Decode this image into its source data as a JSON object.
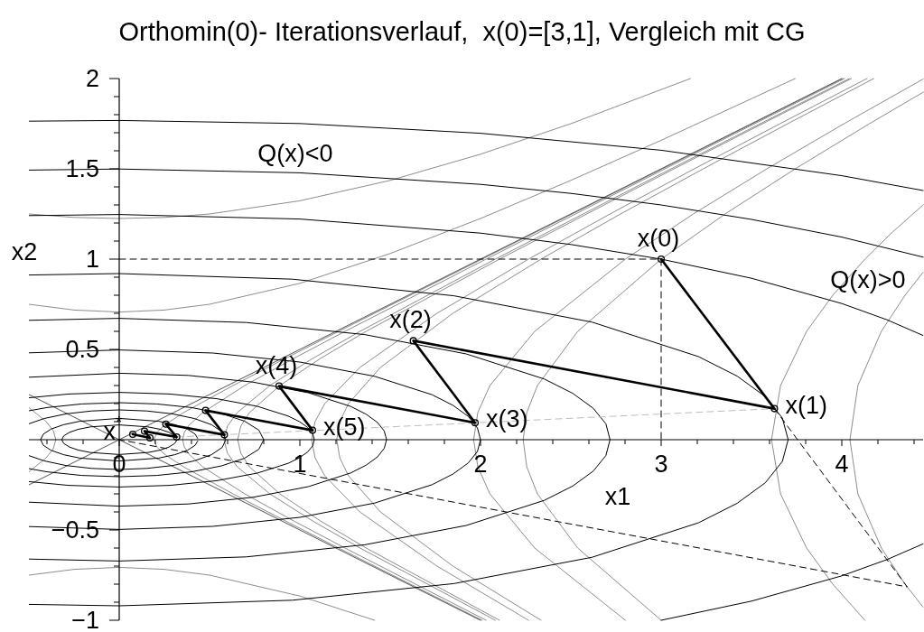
{
  "chart_data": {
    "type": "line",
    "title": "Orthomin(0)- Iterationsverlauf,  x(0)=[3,1], Vergleich mit CG",
    "xlabel": "x1",
    "ylabel": "x2",
    "xlim": [
      -0.5,
      4.45
    ],
    "ylim": [
      -1,
      2
    ],
    "xticks": [
      {
        "value": -0.4,
        "label": null
      },
      {
        "value": -0.2,
        "label": null
      },
      0,
      {
        "value": 0.2,
        "label": null
      },
      {
        "value": 0.4,
        "label": null
      },
      {
        "value": 0.6,
        "label": null
      },
      {
        "value": 0.8,
        "label": null
      },
      1,
      {
        "value": 1.2,
        "label": null
      },
      {
        "value": 1.4,
        "label": null
      },
      {
        "value": 1.6,
        "label": null
      },
      {
        "value": 1.8,
        "label": null
      },
      2,
      {
        "value": 2.2,
        "label": null
      },
      {
        "value": 2.4,
        "label": null
      },
      {
        "value": 2.6,
        "label": null
      },
      {
        "value": 2.8,
        "label": null
      },
      3,
      {
        "value": 3.2,
        "label": null
      },
      {
        "value": 3.4,
        "label": null
      },
      {
        "value": 3.6,
        "label": null
      },
      {
        "value": 3.8,
        "label": null
      },
      4,
      {
        "value": 4.2,
        "label": null
      },
      {
        "value": 4.4,
        "label": null
      }
    ],
    "yticks": [
      {
        "value": -1,
        "label": "−1"
      },
      {
        "value": -0.9,
        "label": null
      },
      {
        "value": -0.8,
        "label": null
      },
      {
        "value": -0.7,
        "label": null
      },
      {
        "value": -0.6,
        "label": null
      },
      {
        "value": -0.5,
        "label": "−0.5"
      },
      {
        "value": -0.4,
        "label": null
      },
      {
        "value": -0.3,
        "label": null
      },
      {
        "value": -0.2,
        "label": null
      },
      {
        "value": -0.1,
        "label": null
      },
      {
        "value": 0.1,
        "label": null
      },
      {
        "value": 0.2,
        "label": null
      },
      {
        "value": 0.3,
        "label": null
      },
      {
        "value": 0.4,
        "label": null
      },
      0.5,
      {
        "value": 0.6,
        "label": null
      },
      {
        "value": 0.7,
        "label": null
      },
      {
        "value": 0.8,
        "label": null
      },
      {
        "value": 0.9,
        "label": null
      },
      1,
      {
        "value": 1.1,
        "label": null
      },
      {
        "value": 1.2,
        "label": null
      },
      {
        "value": 1.3,
        "label": null
      },
      {
        "value": 1.4,
        "label": null
      },
      1.5,
      {
        "value": 1.6,
        "label": null
      },
      {
        "value": 1.7,
        "label": null
      },
      {
        "value": 1.8,
        "label": null
      },
      {
        "value": 1.9,
        "label": null
      },
      2
    ],
    "annotations": [
      {
        "text": "x(0)",
        "x": 3,
        "y": 1
      },
      {
        "text": "x(1)",
        "x": 3.627,
        "y": 0.172
      },
      {
        "text": "x(2)",
        "x": 1.628,
        "y": 0.548
      },
      {
        "text": "x(3)",
        "x": 1.97,
        "y": 0.094
      },
      {
        "text": "x(4)",
        "x": 0.885,
        "y": 0.297
      },
      {
        "text": "x(5)",
        "x": 1.07,
        "y": 0.052
      },
      {
        "text": "x$^{*}$",
        "x": -0.035,
        "y": 0.045
      },
      "Q(x)<0",
      "Q(x)>0"
    ],
    "series": [
      {
        "color": "#8c8c8c",
        "x": [
          4.45,
          4.35,
          4.219,
          4.089,
          4.045,
          4.089,
          4.219,
          4.35,
          4.45
        ],
        "values": [
          0.927,
          0.8,
          0.6,
          0.3,
          0,
          -0.3,
          -0.6,
          -0.8,
          -0.927
        ]
      },
      {
        "color": "#8c8c8c",
        "x": [
          4.45,
          4.281,
          4.128,
          3.95,
          3.805,
          3.661,
          3.611,
          3.661,
          3.805,
          3.95,
          4.128
        ],
        "values": [
          1.3,
          1.15,
          1,
          0.8,
          0.6,
          0.3,
          0,
          -0.3,
          -0.6,
          -0.8,
          -1
        ]
      },
      {
        "color": "#8c8c8c",
        "x": [
          4.45,
          4.153,
          3.742,
          3.354,
          3,
          2.538,
          2.315,
          2.256,
          2.236,
          2.256,
          2.315,
          2.538,
          3
        ],
        "values": [
          1.924,
          1.75,
          1.5,
          1.25,
          1,
          0.6,
          0.3,
          0.15,
          0,
          -0.15,
          -0.3,
          -0.6,
          -1
        ]
      },
      {
        "color": "#8c8c8c",
        "x": [
          4.45,
          4.012,
          3.585,
          3.178,
          2.802,
          2.3,
          2.052,
          1.985,
          1.962,
          1.985,
          2.052,
          2.3,
          2.802
        ],
        "values": [
          1.997,
          1.75,
          1.5,
          1.25,
          1,
          0.6,
          0.3,
          0.15,
          0,
          -0.15,
          -0.3,
          -0.6,
          -1
        ]
      },
      {
        "color": "#8c8c8c",
        "x": [
          4.177,
          3.701,
          3.233,
          2.775,
          2.335,
          1.847,
          1.446,
          1.269,
          1.221,
          1.204,
          1.221,
          1.269,
          1.446,
          1.847,
          2.335
        ],
        "values": [
          2,
          1.75,
          1.5,
          1.25,
          1,
          0.7,
          0.4,
          0.2,
          0.1,
          0,
          -0.1,
          -0.2,
          -0.4,
          -0.7,
          -1
        ]
      },
      {
        "color": "#8c8c8c",
        "x": [
          4.139,
          3.658,
          3.183,
          2.717,
          2.266,
          1.759,
          1.332,
          1.138,
          1.084,
          1.065,
          1.084,
          1.138,
          1.332,
          1.759,
          2.266
        ],
        "values": [
          2,
          1.75,
          1.5,
          1.25,
          1,
          0.7,
          0.4,
          0.2,
          0.1,
          0,
          -0.1,
          -0.2,
          -0.4,
          -0.7,
          -1
        ]
      },
      {
        "color": "#8c8c8c",
        "x": [
          4.053,
          3.071,
          2.105,
          1.367,
          1.114,
          0.889,
          0.721,
          0.673,
          0.656,
          0.673,
          0.721,
          0.889,
          1.114,
          1.367,
          2.105
        ],
        "values": [
          2,
          1.5,
          1,
          0.6,
          0.45,
          0.3,
          0.15,
          0.075,
          0,
          -0.075,
          -0.15,
          -0.3,
          -0.45,
          -0.6,
          -1
        ]
      },
      {
        "color": "#8c8c8c",
        "x": [
          4.042,
          3.055,
          2.082,
          1.333,
          1.071,
          0.834,
          0.653,
          0.599,
          0.58,
          0.599,
          0.653,
          0.834,
          1.071,
          1.333,
          2.082
        ],
        "values": [
          2,
          1.5,
          1,
          0.6,
          0.45,
          0.3,
          0.15,
          0.075,
          0,
          -0.075,
          -0.15,
          -0.3,
          -0.45,
          -0.6,
          -1
        ]
      },
      {
        "color": "#8c8c8c",
        "x": [
          4.015,
          3.02,
          2.031,
          1.25,
          0.966,
          0.695,
          0.462,
          0.386,
          0.36,
          0.351,
          0.36,
          0.386,
          0.462,
          0.695,
          0.966,
          1.25,
          2.031
        ],
        "values": [
          2,
          1.5,
          1,
          0.6,
          0.45,
          0.3,
          0.15,
          0.08,
          0.04,
          0,
          -0.04,
          -0.08,
          -0.15,
          -0.3,
          -0.45,
          -0.6,
          -1
        ]
      },
      {
        "color": "#8c8c8c",
        "x": [
          -0.5,
          -0.404,
          -0.365,
          -0.351,
          -0.365,
          -0.404,
          -0.5
        ],
        "values": [
          0.178,
          0.1,
          0.05,
          0,
          -0.05,
          -0.1,
          -0.178
        ]
      },
      {
        "color": "#8c8c8c",
        "x": [
          4.005,
          3.006,
          2.009,
          1.215,
          0.92,
          0.63,
          0.356,
          0.25,
          0.208,
          0.192,
          0.208,
          0.25,
          0.356,
          0.63,
          0.92,
          1.215,
          2.009
        ],
        "values": [
          2,
          1.5,
          1,
          0.6,
          0.45,
          0.3,
          0.15,
          0.08,
          0.04,
          0,
          -0.04,
          -0.08,
          -0.15,
          -0.3,
          -0.45,
          -0.6,
          -1
        ]
      },
      {
        "color": "#8c8c8c",
        "x": [
          -0.5,
          -0.25,
          0,
          0.25,
          0.5,
          1,
          1.5,
          2,
          2.5,
          3,
          3.742
        ],
        "values": [
          0.75,
          0.718,
          0.707,
          0.718,
          0.75,
          0.866,
          1.031,
          1.225,
          1.436,
          1.658,
          2
        ]
      },
      {
        "color": "#8c8c8c",
        "x": [
          -0.5,
          -0.25,
          0,
          0.25,
          0.5,
          1,
          1.414
        ],
        "values": [
          -0.75,
          -0.718,
          -0.707,
          -0.718,
          -0.75,
          -0.866,
          -1
        ]
      },
      {
        "color": "#8c8c8c",
        "x": [
          -0.5,
          -0.25,
          0,
          0.25,
          0.5,
          1,
          1.5,
          2,
          2.5,
          3.162
        ],
        "values": [
          1.25,
          1.231,
          1.225,
          1.231,
          1.25,
          1.323,
          1.436,
          1.581,
          1.75,
          2
        ]
      },
      {
        "color": "#505050",
        "x": [
          -0.5,
          4
        ],
        "values": [
          -0.25,
          2
        ]
      },
      {
        "color": "#505050",
        "x": [
          -0.5,
          2
        ],
        "values": [
          0.25,
          -1
        ]
      },
      {
        "color": "#000000",
        "x": [
          -0.5,
          0,
          1,
          2,
          3,
          4,
          4.45
        ],
        "values": [
          1.764,
          1.768,
          1.751,
          1.697,
          1.603,
          1.462,
          1.38
        ]
      },
      {
        "color": "#000000",
        "x": [
          -0.5,
          0,
          1,
          2,
          2.5,
          3,
          3.5,
          4,
          4.45
        ],
        "values": [
          1.493,
          1.499,
          1.478,
          1.414,
          1.364,
          1.3,
          1.22,
          1.122,
          1.011
        ]
      },
      {
        "color": "#000000",
        "x": [
          -0.5,
          0,
          1,
          2,
          2.5,
          3,
          3.5,
          4,
          4.25,
          4.45
        ],
        "values": [
          1.241,
          1.247,
          1.222,
          1.144,
          1.081,
          1,
          0.894,
          0.754,
          0.664,
          0.577
        ]
      },
      {
        "color": "#000000",
        "x": [
          3,
          3.5,
          4,
          4.25,
          4.45
        ],
        "values": [
          -1,
          -0.894,
          -0.754,
          -0.664,
          -0.577
        ]
      },
      {
        "color": "#000000",
        "x": [
          -0.5,
          0,
          0.958,
          1.852,
          2.618,
          3.207,
          3.421,
          3.577,
          3.671,
          3.703,
          3.671,
          3.577,
          3.421,
          3.207,
          2.618,
          1.852,
          0.958,
          0,
          -0.5
        ],
        "values": [
          0.912,
          0.92,
          0.889,
          0.797,
          0.651,
          0.46,
          0.352,
          0.238,
          0.12,
          0,
          -0.12,
          -0.238,
          -0.352,
          -0.46,
          -0.651,
          -0.797,
          -0.889,
          -0.92,
          -0.912
        ]
      },
      {
        "color": "#000000",
        "x": [
          -0.5,
          0,
          0.703,
          1.359,
          1.921,
          2.353,
          2.51,
          2.624,
          2.694,
          2.717,
          2.694,
          2.624,
          2.51,
          2.353,
          1.921,
          1.359,
          0.703,
          0,
          -0.5
        ],
        "values": [
          0.661,
          0.672,
          0.649,
          0.582,
          0.475,
          0.336,
          0.257,
          0.174,
          0.088,
          0,
          -0.088,
          -0.174,
          -0.257,
          -0.336,
          -0.475,
          -0.582,
          -0.649,
          -0.672,
          -0.661
        ]
      },
      {
        "color": "#000000",
        "x": [
          -0.5,
          0,
          0.518,
          1,
          1.414,
          1.732,
          1.848,
          1.932,
          1.983,
          2,
          1.983,
          1.932,
          1.848,
          1.732,
          1.414,
          1,
          0.518,
          0,
          -0.5
        ],
        "values": [
          0.481,
          0.497,
          0.48,
          0.43,
          0.351,
          0.249,
          0.19,
          0.129,
          0.065,
          0,
          -0.065,
          -0.129,
          -0.19,
          -0.249,
          -0.351,
          -0.43,
          -0.48,
          -0.497,
          -0.481
        ]
      },
      {
        "color": "#000000",
        "x": [
          -0.5,
          0,
          0.383,
          0.74,
          1.047,
          1.282,
          1.367,
          1.43,
          1.467,
          1.48,
          1.467,
          1.43,
          1.367,
          1.282,
          1.047,
          0.74,
          0.383,
          0,
          -0.5
        ],
        "values": [
          0.346,
          0.368,
          0.356,
          0.319,
          0.26,
          0.184,
          0.141,
          0.095,
          0.048,
          0,
          -0.048,
          -0.095,
          -0.141,
          -0.184,
          -0.26,
          -0.319,
          -0.356,
          -0.368,
          -0.346
        ]
      },
      {
        "color": "#000000",
        "x": [
          -0.5,
          -0.28,
          0,
          0.28,
          0.54,
          0.764,
          0.935,
          0.998,
          1.043,
          1.071,
          1.08,
          1.071,
          1.043,
          0.998,
          0.935,
          0.764,
          0.54,
          0.28,
          0,
          -0.28,
          -0.5
        ],
        "values": [
          0.232,
          0.253,
          0.262,
          0.253,
          0.227,
          0.185,
          0.131,
          0.1,
          0.068,
          0.034,
          0,
          -0.034,
          -0.068,
          -0.1,
          -0.131,
          -0.185,
          -0.227,
          -0.253,
          -0.262,
          -0.253,
          -0.232
        ]
      },
      {
        "color": "#000000",
        "x": [
          -0.5,
          -0.4,
          -0.207,
          0,
          0.207,
          0.4,
          0.566,
          0.693,
          0.773,
          0.8,
          0.773,
          0.693,
          0.566,
          0.4,
          0.207,
          0,
          -0.207,
          -0.4,
          -0.5
        ],
        "values": [
          0.16,
          0.178,
          0.198,
          0.205,
          0.198,
          0.178,
          0.145,
          0.103,
          0.053,
          0,
          -0.053,
          -0.103,
          -0.145,
          -0.178,
          -0.198,
          -0.205,
          -0.198,
          -0.178,
          -0.16
        ]
      },
      {
        "color": "#000000",
        "x": [
          -0.5,
          -0.417,
          -0.295,
          -0.153,
          0,
          0.153,
          0.295,
          0.417,
          0.511,
          0.57,
          0.59,
          0.57,
          0.511,
          0.417,
          0.295,
          0.153,
          0,
          -0.153,
          -0.295,
          -0.417,
          -0.5
        ],
        "values": [
          0.088,
          0.117,
          0.143,
          0.159,
          0.165,
          0.159,
          0.143,
          0.117,
          0.083,
          0.043,
          0,
          -0.043,
          -0.083,
          -0.117,
          -0.143,
          -0.159,
          -0.165,
          -0.159,
          -0.143,
          -0.117,
          -0.088
        ]
      },
      {
        "color": "#000000",
        "x": [
          0.434,
          0.42,
          0.377,
          0.308,
          0.218,
          0,
          -0.218,
          -0.308,
          -0.377,
          -0.42,
          -0.435,
          -0.42,
          -0.377,
          -0.308,
          -0.218,
          0,
          0.218,
          0.308,
          0.377,
          0.42,
          0.434
        ],
        "values": [
          0.008,
          0.031,
          0.059,
          0.083,
          0.102,
          0.118,
          0.102,
          0.083,
          0.059,
          0.031,
          0,
          -0.031,
          -0.059,
          -0.083,
          -0.102,
          -0.118,
          -0.102,
          -0.083,
          -0.059,
          -0.031,
          -0.008
        ]
      },
      {
        "color": "#000000",
        "x": [
          0.317,
          0.307,
          0.275,
          0.225,
          0.159,
          0,
          -0.159,
          -0.225,
          -0.275,
          -0.307,
          -0.318,
          -0.307,
          -0.275,
          -0.225,
          -0.159,
          0,
          0.159,
          0.225,
          0.275,
          0.307,
          0.317
        ],
        "values": [
          0.006,
          0.021,
          0.041,
          0.058,
          0.071,
          0.082,
          0.071,
          0.058,
          0.041,
          0.021,
          0,
          -0.021,
          -0.041,
          -0.058,
          -0.071,
          -0.082,
          -0.071,
          -0.058,
          -0.041,
          -0.021,
          -0.006
        ]
      },
      {
        "color": "#bdbdbd",
        "line_style": "dashed",
        "x": [
          0.318,
          3.627
        ],
        "values": [
          0.015,
          0.172
        ]
      },
      {
        "color": "#000000",
        "line_style": "dashed",
        "x": [
          0,
          3,
          3
        ],
        "values": [
          1,
          1,
          0
        ]
      },
      {
        "color": "#000000",
        "line_style": "dashed",
        "x": [
          3.627,
          4.362,
          0
        ],
        "values": [
          0.172,
          -0.815,
          0
        ]
      },
      {
        "color": "#000000",
        "marker": "circle",
        "x": [
          3,
          3.627,
          1.628,
          1.97,
          0.885,
          1.07,
          0.478,
          0.582,
          0.258,
          0.318,
          0.14,
          0.17,
          0.075
        ],
        "values": [
          1,
          0.172,
          0.548,
          0.094,
          0.297,
          0.052,
          0.162,
          0.027,
          0.086,
          0.015,
          0.047,
          0.01,
          0.03
        ]
      }
    ]
  }
}
